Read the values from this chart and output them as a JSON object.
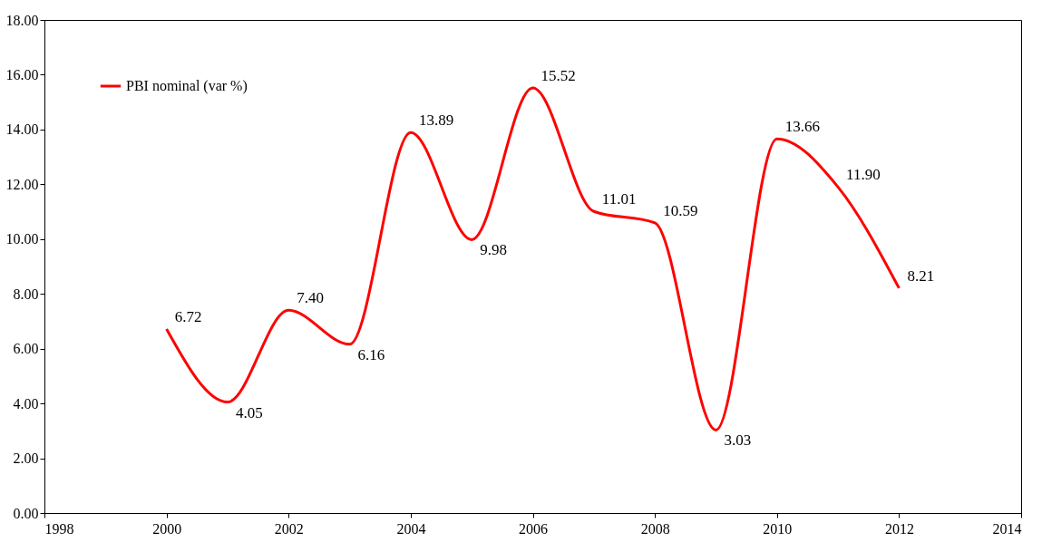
{
  "chart_data": {
    "type": "line",
    "x": [
      2000,
      2001,
      2002,
      2003,
      2004,
      2005,
      2006,
      2007,
      2008,
      2009,
      2010,
      2011,
      2012
    ],
    "series": [
      {
        "name": "PBI nominal (var %)",
        "color": "#ff0000",
        "values": [
          6.72,
          4.05,
          7.4,
          6.16,
          13.89,
          9.98,
          15.52,
          11.01,
          10.59,
          3.03,
          13.66,
          11.9,
          8.21
        ],
        "value_labels": [
          "6.72",
          "4.05",
          "7.40",
          "6.16",
          "13.89",
          "9.98",
          "15.52",
          "11.01",
          "10.59",
          "3.03",
          "13.66",
          "11.90",
          "8.21"
        ]
      }
    ],
    "xlim": [
      1998,
      2014
    ],
    "xticks": [
      1998,
      2000,
      2002,
      2004,
      2006,
      2008,
      2010,
      2012,
      2014
    ],
    "ylim": [
      0,
      18
    ],
    "yticks": [
      {
        "value": 0,
        "label": "0.00"
      },
      {
        "value": 2,
        "label": "2.00"
      },
      {
        "value": 4,
        "label": "4.00"
      },
      {
        "value": 6,
        "label": "6.00"
      },
      {
        "value": 8,
        "label": "8.00"
      },
      {
        "value": 10,
        "label": "10.00"
      },
      {
        "value": 12,
        "label": "12.00"
      },
      {
        "value": 14,
        "label": "14.00"
      },
      {
        "value": 16,
        "label": "16.00"
      },
      {
        "value": 18,
        "label": "18.00"
      }
    ],
    "legend": "top left",
    "marker": "none",
    "line_style": "solid",
    "grid": false
  }
}
